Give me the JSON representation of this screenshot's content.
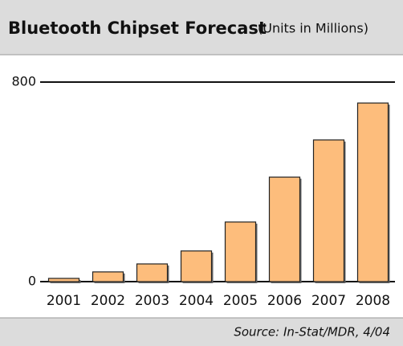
{
  "chart_data": {
    "type": "bar",
    "title": "Bluetooth Chipset Forecast",
    "subtitle": "(Units in Millions)",
    "categories": [
      "2001",
      "2002",
      "2003",
      "2004",
      "2005",
      "2006",
      "2007",
      "2008"
    ],
    "values": [
      13,
      39,
      71,
      123,
      239,
      419,
      568,
      716
    ],
    "color": "#fdbd7c",
    "ylim": [
      0,
      800
    ],
    "yticks": [
      0,
      800
    ],
    "grid": true,
    "source": "Source: In-Stat/MDR, 4/04"
  }
}
